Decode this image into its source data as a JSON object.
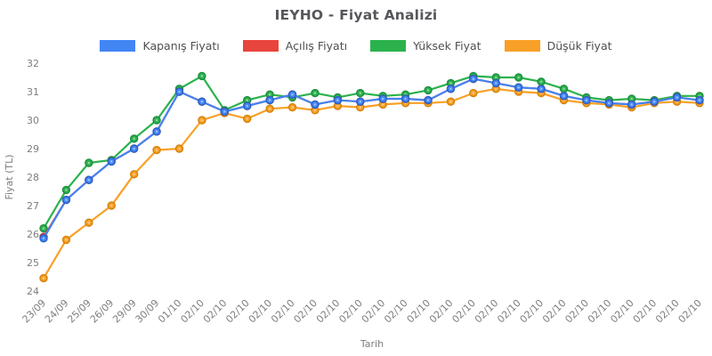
{
  "chart_data": {
    "type": "line",
    "title": "IEYHO - Fiyat Analizi",
    "xlabel": "Tarih",
    "ylabel": "Fiyat (TL)",
    "ylim": [
      24,
      32
    ],
    "yticks": [
      24,
      25,
      26,
      27,
      28,
      29,
      30,
      31,
      32
    ],
    "grid": false,
    "legend_position": "top",
    "categories": [
      "23/09",
      "24/09",
      "25/09",
      "26/09",
      "29/09",
      "30/09",
      "01/10",
      "02/10",
      "02/10",
      "02/10",
      "02/10",
      "02/10",
      "02/10",
      "02/10",
      "02/10",
      "02/10",
      "02/10",
      "02/10",
      "02/10",
      "02/10",
      "02/10",
      "02/10",
      "02/10",
      "02/10",
      "02/10",
      "02/10",
      "02/10",
      "02/10",
      "02/10",
      "02/10"
    ],
    "series": [
      {
        "id": "kapanis-fiyati",
        "name": "Kapanış Fiyatı",
        "color": "#4285F4",
        "edge": "#2A5FC4",
        "values": [
          25.85,
          27.2,
          27.9,
          28.55,
          29.0,
          29.6,
          31.0,
          30.65,
          30.3,
          30.5,
          30.7,
          30.9,
          30.55,
          30.7,
          30.65,
          30.75,
          30.75,
          30.7,
          31.1,
          31.45,
          31.3,
          31.15,
          31.1,
          30.85,
          30.7,
          30.6,
          30.55,
          30.65,
          30.8,
          30.7
        ]
      },
      {
        "id": "acilis-fiyati",
        "name": "Açılış Fiyatı",
        "color": "#E8453C",
        "edge": "#C0392B",
        "values": [
          25.9,
          27.2,
          27.9,
          28.55,
          29.0,
          29.6,
          31.0,
          30.65,
          30.3,
          30.5,
          30.7,
          30.9,
          30.55,
          30.7,
          30.65,
          30.75,
          30.75,
          30.7,
          31.1,
          31.45,
          31.3,
          31.15,
          31.1,
          30.85,
          30.7,
          30.6,
          30.55,
          30.65,
          30.8,
          30.7
        ]
      },
      {
        "id": "yuksek-fiyat",
        "name": "Yüksek Fiyat",
        "color": "#2BB24C",
        "edge": "#1E8E42",
        "values": [
          26.2,
          27.55,
          28.5,
          28.6,
          29.35,
          30.0,
          31.1,
          31.55,
          30.35,
          30.7,
          30.9,
          30.8,
          30.95,
          30.8,
          30.95,
          30.85,
          30.9,
          31.05,
          31.3,
          31.55,
          31.5,
          31.5,
          31.35,
          31.1,
          30.8,
          30.7,
          30.75,
          30.7,
          30.85,
          30.85
        ]
      },
      {
        "id": "dusuk-fiyat",
        "name": "Düşük Fiyat",
        "color": "#F9A026",
        "edge": "#D4820A",
        "values": [
          24.45,
          25.8,
          26.4,
          27.0,
          28.1,
          28.95,
          29.0,
          30.0,
          30.25,
          30.05,
          30.4,
          30.45,
          30.35,
          30.5,
          30.45,
          30.55,
          30.6,
          30.6,
          30.65,
          30.95,
          31.1,
          31.0,
          30.95,
          30.7,
          30.6,
          30.55,
          30.45,
          30.6,
          30.65,
          30.6
        ]
      }
    ]
  }
}
